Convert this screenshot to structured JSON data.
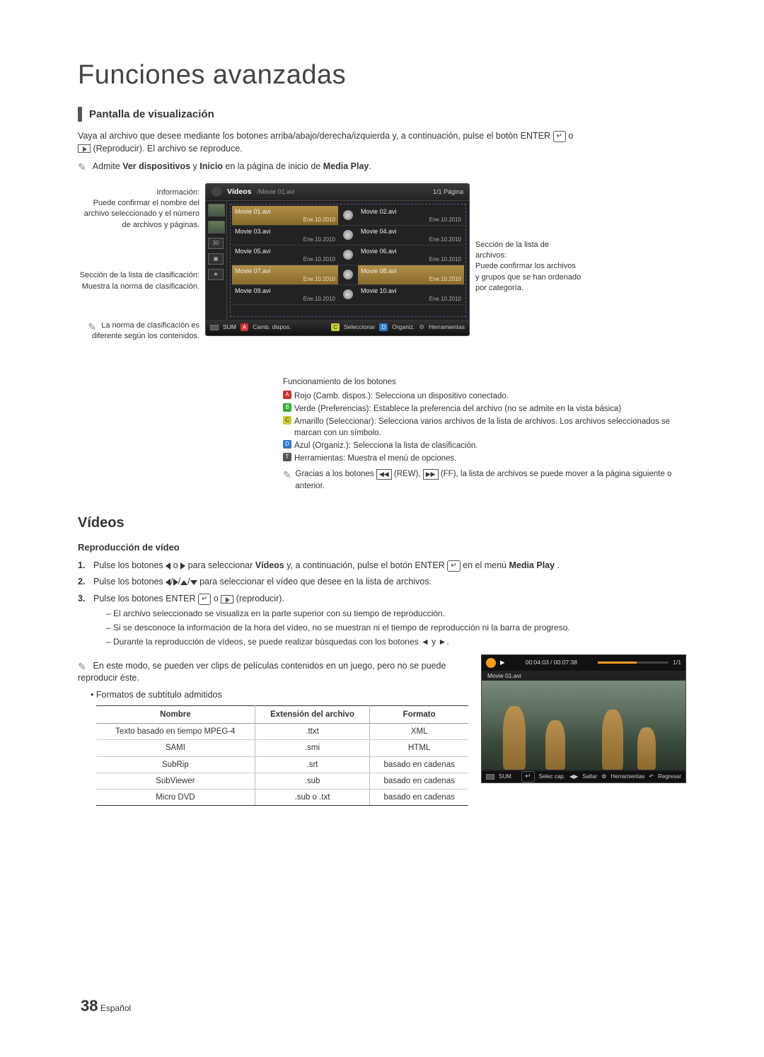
{
  "page": {
    "title": "Funciones avanzadas",
    "number": "38",
    "lang": "Español"
  },
  "section1": {
    "heading": "Pantalla de visualización",
    "intro_a": "Vaya al archivo que desee mediante los botones arriba/abajo/derecha/izquierda y, a continuación, pulse el botón ENTER",
    "enter_glyph": "↵",
    "intro_b": "o",
    "intro_c": "(Reproducir). El archivo se reproduce.",
    "note_prefix": "Admite ",
    "note_bold1": "Ver dispositivos",
    "note_mid": " y ",
    "note_bold2": "Inicio",
    "note_suffix": " en la página de inicio de ",
    "note_bold3": "Media Play"
  },
  "screenshot": {
    "header": {
      "title": "Vídeos",
      "path": "/Movie 01.avi",
      "page": "1/1 Página"
    },
    "files": [
      {
        "name": "Movie 01.avi",
        "date": "Ene.10.2010",
        "sel": true,
        "pair": {
          "name": "Movie 02.avi",
          "date": "Ene.10.2010"
        }
      },
      {
        "name": "Movie 03.avi",
        "date": "Ene.10.2010",
        "pair": {
          "name": "Movie 04.avi",
          "date": "Ene.10.2010"
        }
      },
      {
        "name": "Movie 05.avi",
        "date": "Ene.10.2010",
        "pair": {
          "name": "Movie 06.avi",
          "date": "Ene.10.2010"
        }
      },
      {
        "name": "Movie 07.avi",
        "date": "Ene.10.2010",
        "sel": true,
        "pair": {
          "name": "Movie 08.avi",
          "date": "Ene.10.2010",
          "sel": true
        }
      },
      {
        "name": "Movie 09.avi",
        "date": "Ene.10.2010",
        "pair": {
          "name": "Movie 10.avi",
          "date": "Ene.10.2010"
        }
      }
    ],
    "footer": {
      "sum": "SUM",
      "A": "A",
      "Atext": "Camb. dispos.",
      "C": "C",
      "Ctext": "Seleccionar",
      "D": "D",
      "Dtext": "Organiz.",
      "tool": "Herramientas"
    }
  },
  "labels": {
    "info_title": "Información:",
    "info_body": "Puede confirmar el nombre del archivo seleccionado y el número de archivos y páginas.",
    "class_title": "Sección de la lista de clasificación: Muestra la norma de clasificación.",
    "class_note": "La norma de clasificación es diferente según los contenidos.",
    "files_title": "Sección de la lista de archivos:",
    "files_body": "Puede confirmar los archivos y grupos que se han ordenado por categoría."
  },
  "button_funcs": {
    "title": "Funcionamiento de los botones",
    "rows": [
      {
        "badge": "A",
        "cls": "btn-A",
        "bold": "Rojo (Camb. dispos.)",
        "text": ": Selecciona un dispositivo conectado."
      },
      {
        "badge": "B",
        "cls": "btn-B",
        "bold": "Verde (Preferencias)",
        "text": ": Establece la preferencia del archivo (no se admite en la vista básica)"
      },
      {
        "badge": "C",
        "cls": "btn-C",
        "bold": "Amarillo (Seleccionar)",
        "text": ": Selecciona varios archivos de la lista de archivos. Los archivos seleccionados se marcan con un símbolo."
      },
      {
        "badge": "D",
        "cls": "btn-D",
        "bold": "Azul (Organiz.)",
        "text": ": Selecciona la lista de clasificación."
      },
      {
        "badge": "T",
        "cls": "btn-tool",
        "bold": "Herramientas",
        "text": ": Muestra el menú de opciones."
      }
    ],
    "nav_note_a": "Gracias a los botones ",
    "nav_note_b": " (REW), ",
    "nav_note_c": " (FF), la lista de archivos se puede mover a la página siguiente o anterior."
  },
  "videos": {
    "heading": "Vídeos",
    "sub": "Reproducción de vídeo",
    "steps": [
      {
        "n": "1.",
        "a": "Pulse los botones ",
        "b": " o ",
        "c": " para seleccionar ",
        "bold1": "Vídeos",
        "d": " y, a continuación, pulse el botón ENTER",
        "e": " en el menú ",
        "bold2": "Media Play",
        "f": "."
      },
      {
        "n": "2.",
        "a": "Pulse los botones ",
        "b": " para seleccionar el vídeo que desee en la lista de archivos."
      },
      {
        "n": "3.",
        "a": "Pulse los botones ENTER",
        "b": " o ",
        "c": " (reproducir)."
      }
    ],
    "dashes": [
      "El archivo seleccionado se visualiza en la parte superior con su tiempo de reproducción.",
      "Si se desconoce la información de la hora del vídeo, no se muestran ni el tiempo de reproducción ni la barra de progreso.",
      "Durante la reproducción de vídeos, se puede realizar búsquedas con los botones ◄ y ►."
    ],
    "note1": "En este modo, se pueden ver clips de películas contenidos en un juego, pero no se puede reproducir éste.",
    "bullet": "Formatos de subtítulo admitidos"
  },
  "subtitle_table": {
    "headers": [
      "Nombre",
      "Extensión del archivo",
      "Formato"
    ],
    "rows": [
      [
        "Texto basado en tiempo MPEG-4",
        ".ttxt",
        "XML"
      ],
      [
        "SAMI",
        ".smi",
        "HTML"
      ],
      [
        "SubRip",
        ".srt",
        "basado en cadenas"
      ],
      [
        "SubViewer",
        ".sub",
        "basado en cadenas"
      ],
      [
        "Micro DVD",
        ".sub o .txt",
        "basado en cadenas"
      ]
    ]
  },
  "video_preview": {
    "timer": "00:04:03 / 00:07:38",
    "page": "1/1",
    "name": "Movie 01.avi",
    "footer": {
      "sum": "SUM",
      "selcap": "Selec cap.",
      "saltar": "Saltar",
      "herr": "Herramientas",
      "reg": "Regresar"
    }
  }
}
